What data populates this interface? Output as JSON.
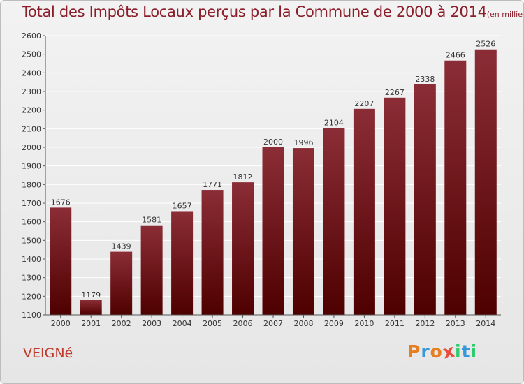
{
  "title": "Total des Impôts Locaux perçus par la Commune de 2000 à 2014",
  "title_unit": "(en milliers d'€)",
  "commune": "VEIGNé",
  "logo": {
    "text": "Proxiti",
    "letters": [
      {
        "ch": "P",
        "color": "#e67e22"
      },
      {
        "ch": "r",
        "color": "#3498db"
      },
      {
        "ch": "o",
        "color": "#e67e22"
      },
      {
        "ch": "x",
        "color": "#e74c3c"
      },
      {
        "ch": "i",
        "color": "#2ecc71"
      },
      {
        "ch": "t",
        "color": "#3498db"
      },
      {
        "ch": "i",
        "color": "#2ecc71"
      }
    ]
  },
  "colors": {
    "bar_top": "#8b2d36",
    "bar_bottom": "#4e0000",
    "grid": "#ffffff",
    "title": "#8b1e2a",
    "commune": "#c0392b"
  },
  "chart_data": {
    "type": "bar",
    "categories": [
      "2000",
      "2001",
      "2002",
      "2003",
      "2004",
      "2005",
      "2006",
      "2007",
      "2008",
      "2009",
      "2010",
      "2011",
      "2012",
      "2013",
      "2014"
    ],
    "values": [
      1676,
      1179,
      1439,
      1581,
      1657,
      1771,
      1812,
      2000,
      1996,
      2104,
      2207,
      2267,
      2338,
      2466,
      2526
    ],
    "ylim": [
      1100,
      2600
    ],
    "yticks": [
      1100,
      1200,
      1300,
      1400,
      1500,
      1600,
      1700,
      1800,
      1900,
      2000,
      2100,
      2200,
      2300,
      2400,
      2500,
      2600
    ],
    "grid": true,
    "data_labels": true
  }
}
